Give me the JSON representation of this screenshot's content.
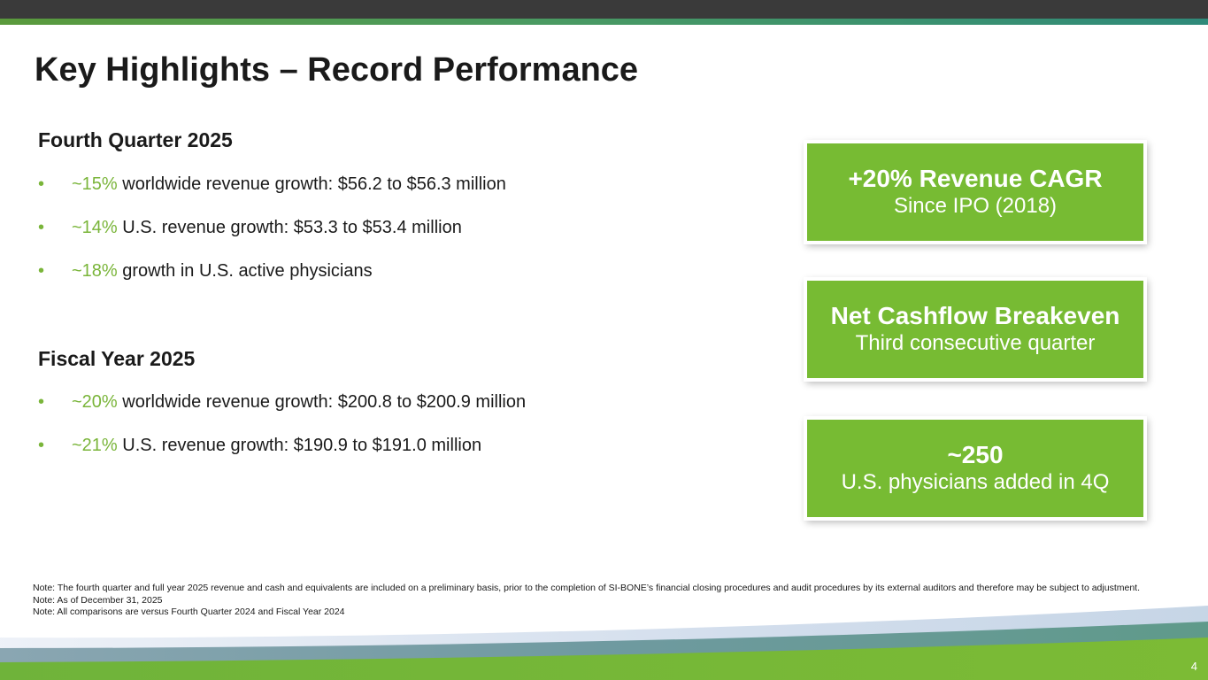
{
  "slide": {
    "title": "Key Highlights – Record Performance",
    "page_number": "4"
  },
  "q4": {
    "heading": "Fourth Quarter 2025",
    "bullets": [
      {
        "pct": "~15%",
        "text": " worldwide revenue growth: $56.2 to $56.3 million"
      },
      {
        "pct": "~14%",
        "text": " U.S. revenue growth: $53.3 to $53.4 million"
      },
      {
        "pct": "~18%",
        "text": " growth in U.S. active physicians"
      }
    ]
  },
  "fy": {
    "heading": "Fiscal Year 2025",
    "bullets": [
      {
        "pct": "~20%",
        "text": " worldwide revenue growth: $200.8 to $200.9 million"
      },
      {
        "pct": "~21%",
        "text": " U.S. revenue growth: $190.9 to $191.0 million"
      }
    ]
  },
  "bullet_symbol": "•",
  "cards": [
    {
      "headline": "+20% Revenue CAGR",
      "sub": "Since IPO (2018)"
    },
    {
      "headline": "Net Cashflow Breakeven",
      "sub": "Third consecutive quarter"
    },
    {
      "headline": "~250",
      "sub": "U.S. physicians added in 4Q"
    }
  ],
  "notes": [
    "Note: The fourth quarter and full year 2025 revenue and cash and equivalents are included on a preliminary basis, prior to the completion of SI-BONE’s financial closing procedures and audit procedures by its external auditors and therefore may be subject to adjustment.",
    "Note: As of December 31, 2025",
    "Note: All comparisons are versus Fourth Quarter 2024 and Fiscal Year 2024"
  ],
  "colors": {
    "accent_green": "#77bb33",
    "dark_bar": "#3a3a3a",
    "text": "#1a1a1a"
  }
}
